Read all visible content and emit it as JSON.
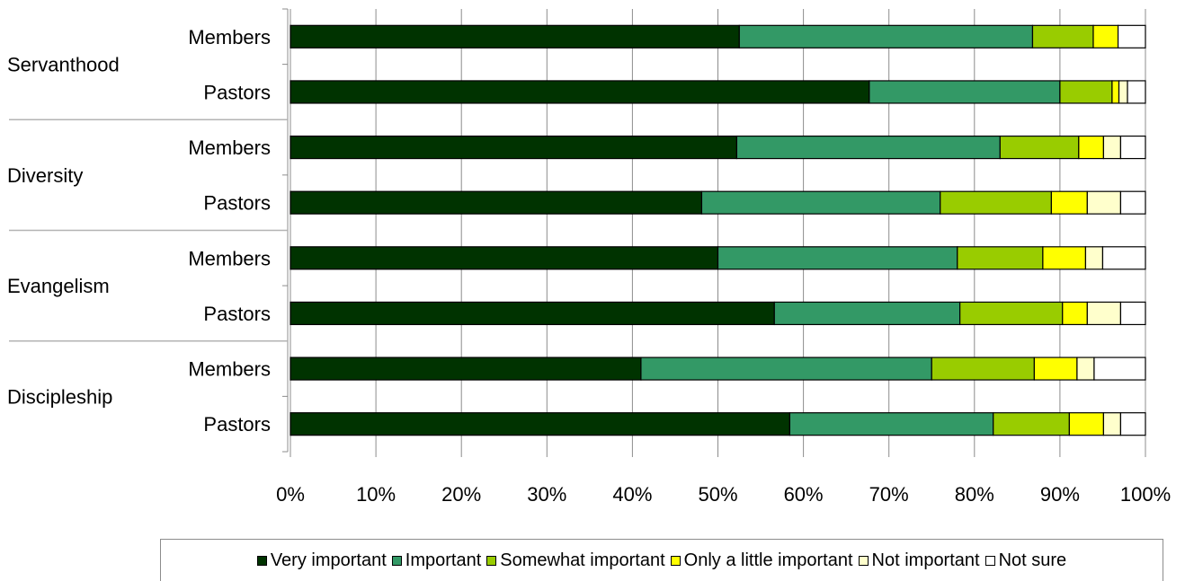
{
  "chart_data": {
    "type": "bar",
    "orientation": "horizontal",
    "stacked": true,
    "groups": [
      {
        "name": "Servanthood",
        "rows": [
          {
            "label": "Members",
            "values": [
              52.5,
              34.3,
              7.1,
              2.9,
              0,
              3.2
            ]
          },
          {
            "label": "Pastors",
            "values": [
              67.7,
              22.3,
              6.1,
              0.8,
              1.0,
              2.1
            ]
          }
        ]
      },
      {
        "name": "Diversity",
        "rows": [
          {
            "label": "Members",
            "values": [
              52.2,
              30.8,
              9.2,
              2.9,
              2.0,
              2.9
            ]
          },
          {
            "label": "Pastors",
            "values": [
              48.1,
              27.9,
              13.0,
              4.2,
              3.9,
              2.9
            ]
          }
        ]
      },
      {
        "name": "Evangelism",
        "rows": [
          {
            "label": "Members",
            "values": [
              50.0,
              28.0,
              10.0,
              5.0,
              2.0,
              5.0
            ]
          },
          {
            "label": "Pastors",
            "values": [
              56.6,
              21.7,
              12.0,
              2.9,
              3.9,
              2.9
            ]
          }
        ]
      },
      {
        "name": "Discipleship",
        "rows": [
          {
            "label": "Members",
            "values": [
              41.0,
              34.0,
              12.0,
              5.0,
              2.0,
              6.0
            ]
          },
          {
            "label": "Pastors",
            "values": [
              58.4,
              23.8,
              8.9,
              4.0,
              2.0,
              2.9
            ]
          }
        ]
      }
    ],
    "series": [
      {
        "name": "Very important",
        "color": "#003300"
      },
      {
        "name": "Important",
        "color": "#339966"
      },
      {
        "name": "Somewhat important",
        "color": "#99cc00"
      },
      {
        "name": "Only a little important",
        "color": "#ffff00"
      },
      {
        "name": "Not important",
        "color": "#ffffcc"
      },
      {
        "name": "Not sure",
        "color": "#ffffff"
      }
    ],
    "x_ticks": [
      "0%",
      "10%",
      "20%",
      "30%",
      "40%",
      "50%",
      "60%",
      "70%",
      "80%",
      "90%",
      "100%"
    ],
    "xlim": [
      0,
      100
    ],
    "grid": true,
    "legend_position": "bottom"
  }
}
